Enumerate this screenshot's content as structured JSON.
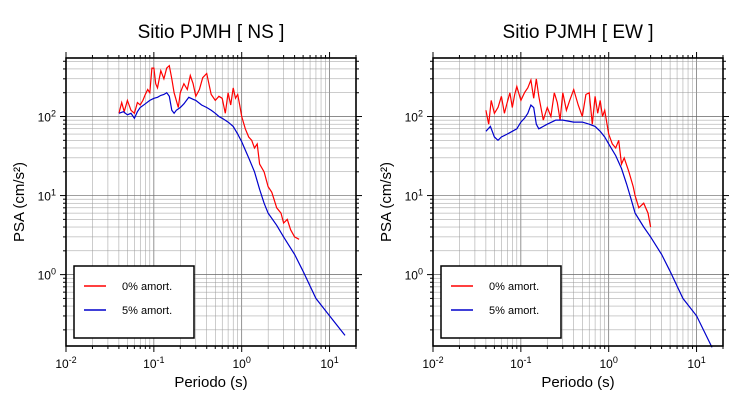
{
  "chart_data": [
    {
      "type": "line",
      "title": "Sitio PJMH [ NS ]",
      "xlabel": "Periodo (s)",
      "ylabel": "PSA (cm/s²)",
      "xscale": "log",
      "yscale": "log",
      "xlim": [
        0.01,
        20
      ],
      "ylim": [
        0.125,
        550
      ],
      "grid": true,
      "legend_position": "bottom-left",
      "x_ticks": [
        {
          "base": "10",
          "exp": "-2"
        },
        {
          "base": "10",
          "exp": "-1"
        },
        {
          "base": "10",
          "exp": "0"
        },
        {
          "base": "10",
          "exp": "1"
        }
      ],
      "y_ticks": [
        {
          "base": "10",
          "exp": "0"
        },
        {
          "base": "10",
          "exp": "1"
        },
        {
          "base": "10",
          "exp": "2"
        }
      ],
      "series": [
        {
          "name": "0% amort.",
          "color": "#ff0000",
          "x": [
            0.04,
            0.043,
            0.046,
            0.05,
            0.055,
            0.06,
            0.065,
            0.07,
            0.075,
            0.08,
            0.085,
            0.09,
            0.095,
            0.1,
            0.105,
            0.11,
            0.12,
            0.13,
            0.14,
            0.15,
            0.16,
            0.17,
            0.18,
            0.19,
            0.2,
            0.22,
            0.24,
            0.26,
            0.28,
            0.3,
            0.33,
            0.36,
            0.4,
            0.45,
            0.5,
            0.55,
            0.6,
            0.65,
            0.7,
            0.75,
            0.8,
            0.85,
            0.9,
            0.95,
            1.0,
            1.1,
            1.2,
            1.3,
            1.4,
            1.5,
            1.6,
            1.8,
            2.0,
            2.2,
            2.5,
            2.8,
            3.0,
            3.3,
            3.6,
            4.0,
            4.5
          ],
          "y": [
            110,
            150,
            115,
            160,
            120,
            110,
            150,
            140,
            160,
            190,
            220,
            200,
            410,
            410,
            260,
            230,
            380,
            300,
            410,
            440,
            300,
            200,
            160,
            130,
            200,
            260,
            220,
            330,
            260,
            180,
            220,
            310,
            350,
            190,
            160,
            180,
            170,
            110,
            200,
            140,
            230,
            170,
            190,
            140,
            100,
            70,
            55,
            50,
            40,
            45,
            25,
            20,
            13,
            11,
            7,
            6,
            4.5,
            5,
            3.7,
            3,
            2.8
          ]
        },
        {
          "name": "5% amort.",
          "color": "#0000cc",
          "x": [
            0.04,
            0.045,
            0.05,
            0.055,
            0.06,
            0.065,
            0.07,
            0.08,
            0.09,
            0.1,
            0.11,
            0.12,
            0.13,
            0.14,
            0.15,
            0.16,
            0.17,
            0.18,
            0.2,
            0.22,
            0.25,
            0.28,
            0.3,
            0.35,
            0.4,
            0.45,
            0.5,
            0.55,
            0.6,
            0.7,
            0.8,
            0.9,
            1.0,
            1.2,
            1.4,
            1.6,
            1.8,
            2.0,
            2.5,
            3.0,
            4.0,
            5.0,
            7.0,
            10.0,
            15.0
          ],
          "y": [
            110,
            115,
            105,
            110,
            95,
            115,
            130,
            145,
            160,
            170,
            175,
            185,
            190,
            200,
            180,
            120,
            110,
            120,
            130,
            145,
            175,
            165,
            160,
            140,
            130,
            120,
            110,
            100,
            95,
            85,
            75,
            60,
            48,
            30,
            20,
            12,
            8,
            6,
            4.2,
            3,
            1.8,
            1.1,
            0.5,
            0.3,
            0.17
          ]
        }
      ]
    },
    {
      "type": "line",
      "title": "Sitio PJMH [ EW ]",
      "xlabel": "Periodo (s)",
      "ylabel": "PSA (cm/s²)",
      "xscale": "log",
      "yscale": "log",
      "xlim": [
        0.01,
        20
      ],
      "ylim": [
        0.125,
        550
      ],
      "grid": true,
      "legend_position": "bottom-left",
      "x_ticks": [
        {
          "base": "10",
          "exp": "-2"
        },
        {
          "base": "10",
          "exp": "-1"
        },
        {
          "base": "10",
          "exp": "0"
        },
        {
          "base": "10",
          "exp": "1"
        }
      ],
      "y_ticks": [
        {
          "base": "10",
          "exp": "0"
        },
        {
          "base": "10",
          "exp": "1"
        },
        {
          "base": "10",
          "exp": "2"
        }
      ],
      "series": [
        {
          "name": "0% amort.",
          "color": "#ff0000",
          "x": [
            0.04,
            0.043,
            0.046,
            0.05,
            0.055,
            0.06,
            0.065,
            0.07,
            0.075,
            0.08,
            0.085,
            0.09,
            0.1,
            0.11,
            0.12,
            0.13,
            0.14,
            0.15,
            0.16,
            0.18,
            0.2,
            0.22,
            0.24,
            0.26,
            0.28,
            0.3,
            0.33,
            0.36,
            0.4,
            0.45,
            0.5,
            0.55,
            0.6,
            0.65,
            0.7,
            0.75,
            0.8,
            0.85,
            0.9,
            1.0,
            1.1,
            1.2,
            1.3,
            1.4,
            1.5,
            1.7,
            1.9,
            2.0,
            2.2,
            2.5,
            2.8,
            3.0
          ],
          "y": [
            120,
            80,
            160,
            110,
            130,
            180,
            110,
            150,
            200,
            130,
            190,
            240,
            160,
            200,
            230,
            290,
            170,
            300,
            180,
            90,
            130,
            100,
            200,
            150,
            90,
            200,
            120,
            160,
            220,
            140,
            100,
            190,
            200,
            80,
            180,
            110,
            160,
            100,
            120,
            60,
            45,
            40,
            50,
            25,
            30,
            20,
            13,
            10,
            7,
            8,
            6,
            4
          ]
        },
        {
          "name": "5% amort.",
          "color": "#0000cc",
          "x": [
            0.04,
            0.045,
            0.05,
            0.055,
            0.06,
            0.07,
            0.08,
            0.09,
            0.1,
            0.11,
            0.12,
            0.13,
            0.14,
            0.15,
            0.16,
            0.18,
            0.2,
            0.25,
            0.3,
            0.4,
            0.5,
            0.6,
            0.7,
            0.8,
            0.9,
            1.0,
            1.2,
            1.4,
            1.6,
            1.8,
            2.0,
            2.5,
            3.0,
            4.0,
            5.0,
            7.0,
            10.0,
            15.0
          ],
          "y": [
            65,
            75,
            55,
            50,
            55,
            60,
            65,
            70,
            85,
            95,
            110,
            140,
            130,
            80,
            70,
            75,
            80,
            90,
            90,
            85,
            85,
            80,
            75,
            65,
            55,
            45,
            32,
            22,
            14,
            9,
            6,
            4,
            3,
            1.8,
            1.1,
            0.5,
            0.3,
            0.12
          ]
        }
      ]
    }
  ]
}
